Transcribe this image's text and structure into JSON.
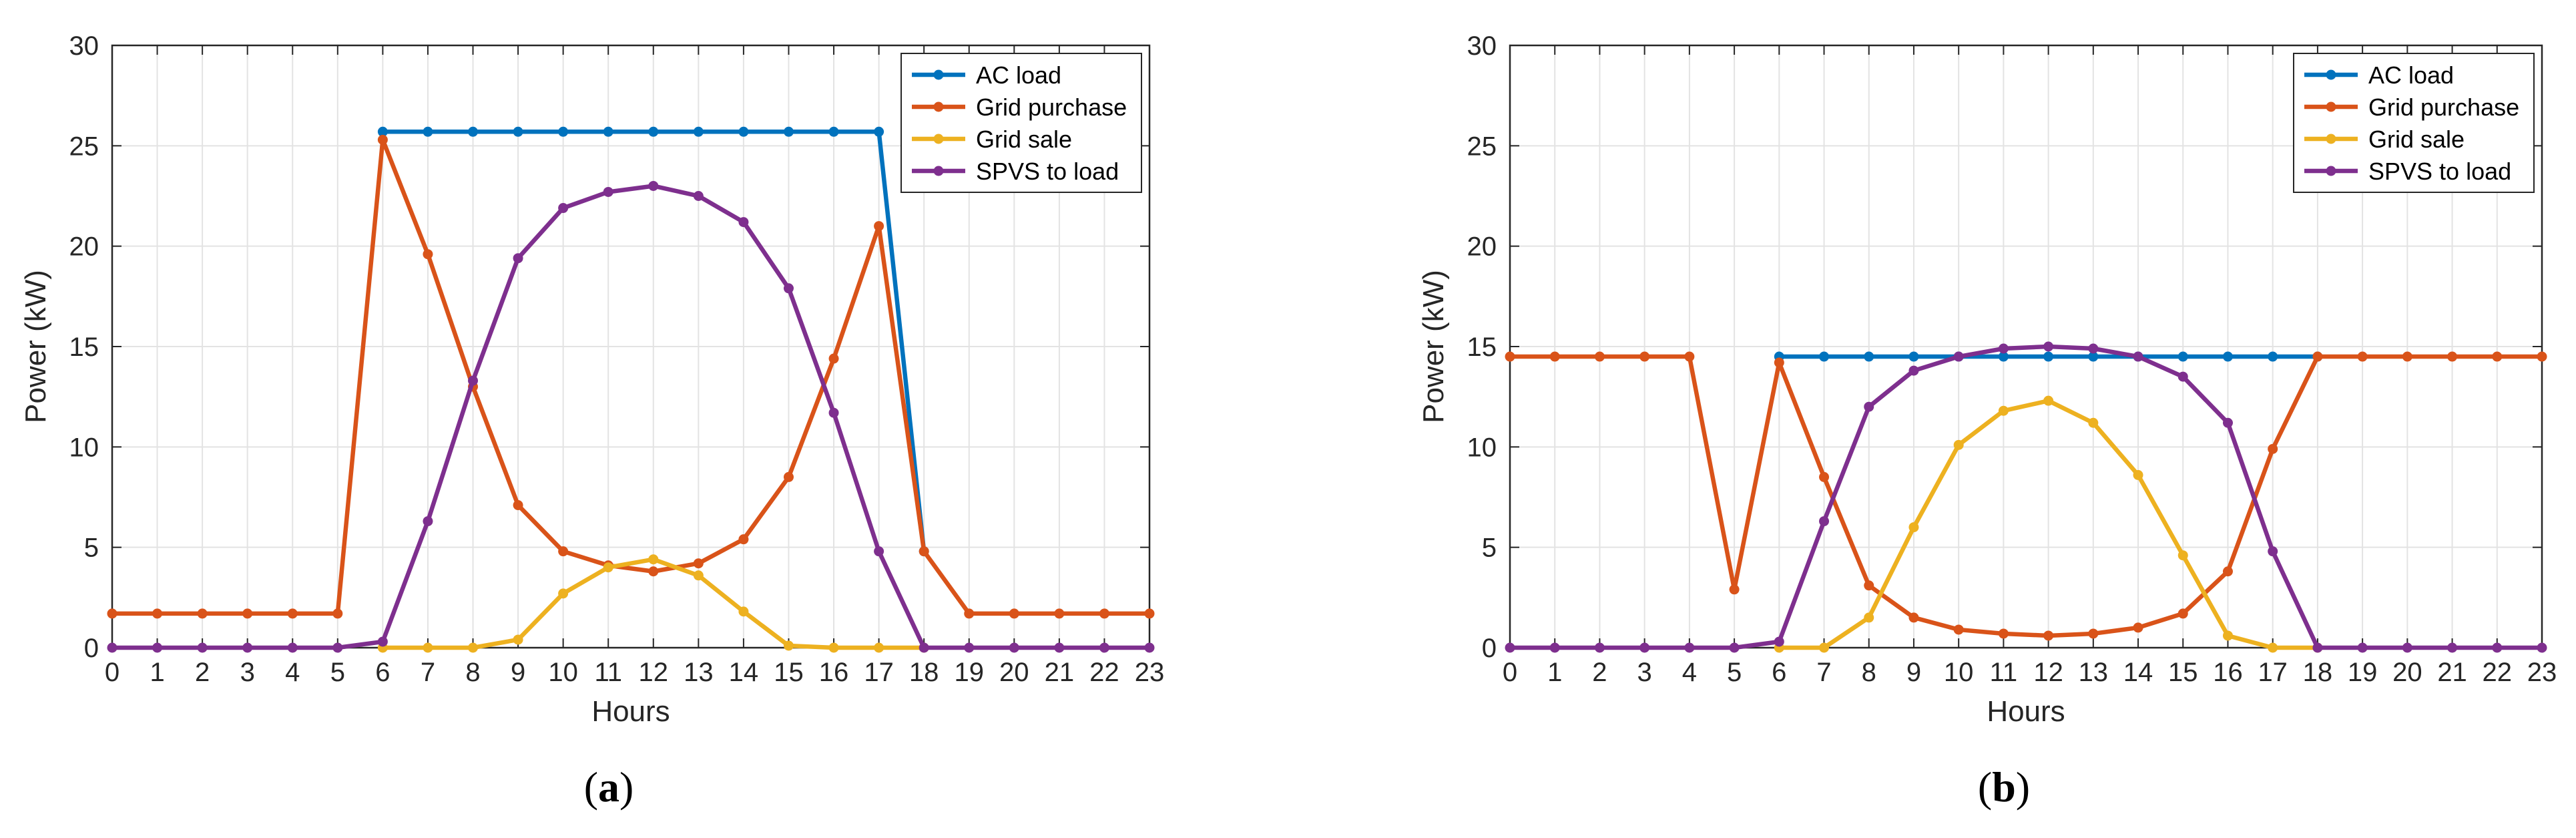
{
  "figure": {
    "caption_labels": [
      "(a)",
      "(b)"
    ]
  },
  "chart_data": [
    {
      "type": "line",
      "panel": "(a)",
      "panel_letter": "a",
      "xlabel": "Hours",
      "ylabel": "Power (kW)",
      "xlim": [
        0,
        23
      ],
      "ylim": [
        0,
        30
      ],
      "x_ticks": [
        0,
        1,
        2,
        3,
        4,
        5,
        6,
        7,
        8,
        9,
        10,
        11,
        12,
        13,
        14,
        15,
        16,
        17,
        18,
        19,
        20,
        21,
        22,
        23
      ],
      "y_ticks": [
        0,
        5,
        10,
        15,
        20,
        25,
        30
      ],
      "grid": true,
      "legend_position": "top-right",
      "series": [
        {
          "name": "AC load",
          "color": "#0072BD",
          "x": [
            6,
            7,
            8,
            9,
            10,
            11,
            12,
            13,
            14,
            15,
            16,
            17,
            18
          ],
          "y": [
            25.7,
            25.7,
            25.7,
            25.7,
            25.7,
            25.7,
            25.7,
            25.7,
            25.7,
            25.7,
            25.7,
            25.7,
            4.8
          ]
        },
        {
          "name": "Grid purchase",
          "color": "#D95319",
          "x": [
            0,
            1,
            2,
            3,
            4,
            5,
            6,
            7,
            8,
            9,
            10,
            11,
            12,
            13,
            14,
            15,
            16,
            17,
            18,
            19,
            20,
            21,
            22,
            23
          ],
          "y": [
            1.7,
            1.7,
            1.7,
            1.7,
            1.7,
            1.7,
            25.3,
            19.6,
            13.0,
            7.1,
            4.8,
            4.1,
            3.8,
            4.2,
            5.4,
            8.5,
            14.4,
            21.0,
            4.8,
            1.7,
            1.7,
            1.7,
            1.7,
            1.7
          ]
        },
        {
          "name": "Grid sale",
          "color": "#EDB120",
          "x": [
            6,
            7,
            8,
            9,
            10,
            11,
            12,
            13,
            14,
            15,
            16,
            17,
            18
          ],
          "y": [
            0,
            0,
            0,
            0.4,
            2.7,
            4.0,
            4.4,
            3.6,
            1.8,
            0.1,
            0,
            0,
            0
          ]
        },
        {
          "name": "SPVS to load",
          "color": "#7E2F8E",
          "x": [
            0,
            1,
            2,
            3,
            4,
            5,
            6,
            7,
            8,
            9,
            10,
            11,
            12,
            13,
            14,
            15,
            16,
            17,
            18,
            19,
            20,
            21,
            22,
            23
          ],
          "y": [
            0,
            0,
            0,
            0,
            0,
            0,
            0.3,
            6.3,
            13.3,
            19.4,
            21.9,
            22.7,
            23.0,
            22.5,
            21.2,
            17.9,
            11.7,
            4.8,
            0,
            0,
            0,
            0,
            0,
            0
          ]
        }
      ]
    },
    {
      "type": "line",
      "panel": "(b)",
      "panel_letter": "b",
      "xlabel": "Hours",
      "ylabel": "Power (kW)",
      "xlim": [
        0,
        23
      ],
      "ylim": [
        0,
        30
      ],
      "x_ticks": [
        0,
        1,
        2,
        3,
        4,
        5,
        6,
        7,
        8,
        9,
        10,
        11,
        12,
        13,
        14,
        15,
        16,
        17,
        18,
        19,
        20,
        21,
        22,
        23
      ],
      "y_ticks": [
        0,
        5,
        10,
        15,
        20,
        25,
        30
      ],
      "grid": true,
      "legend_position": "top-right",
      "series": [
        {
          "name": "AC load",
          "color": "#0072BD",
          "x": [
            6,
            7,
            8,
            9,
            10,
            11,
            12,
            13,
            14,
            15,
            16,
            17,
            18
          ],
          "y": [
            14.5,
            14.5,
            14.5,
            14.5,
            14.5,
            14.5,
            14.5,
            14.5,
            14.5,
            14.5,
            14.5,
            14.5,
            14.5
          ]
        },
        {
          "name": "Grid purchase",
          "color": "#D95319",
          "x": [
            0,
            1,
            2,
            3,
            4,
            5,
            6,
            7,
            8,
            9,
            10,
            11,
            12,
            13,
            14,
            15,
            16,
            17,
            18,
            19,
            20,
            21,
            22,
            23
          ],
          "y": [
            14.5,
            14.5,
            14.5,
            14.5,
            14.5,
            2.9,
            14.2,
            8.5,
            3.1,
            1.5,
            0.9,
            0.7,
            0.6,
            0.7,
            1.0,
            1.7,
            3.8,
            9.9,
            14.5,
            14.5,
            14.5,
            14.5,
            14.5,
            14.5
          ]
        },
        {
          "name": "Grid sale",
          "color": "#EDB120",
          "x": [
            6,
            7,
            8,
            9,
            10,
            11,
            12,
            13,
            14,
            15,
            16,
            17,
            18
          ],
          "y": [
            0,
            0,
            1.5,
            6.0,
            10.1,
            11.8,
            12.3,
            11.2,
            8.6,
            4.6,
            0.6,
            0,
            0
          ]
        },
        {
          "name": "SPVS to load",
          "color": "#7E2F8E",
          "x": [
            0,
            1,
            2,
            3,
            4,
            5,
            6,
            7,
            8,
            9,
            10,
            11,
            12,
            13,
            14,
            15,
            16,
            17,
            18,
            19,
            20,
            21,
            22,
            23
          ],
          "y": [
            0,
            0,
            0,
            0,
            0,
            0,
            0.3,
            6.3,
            12.0,
            13.8,
            14.5,
            14.9,
            15.0,
            14.9,
            14.5,
            13.5,
            11.2,
            4.8,
            0,
            0,
            0,
            0,
            0,
            0
          ]
        }
      ]
    }
  ]
}
